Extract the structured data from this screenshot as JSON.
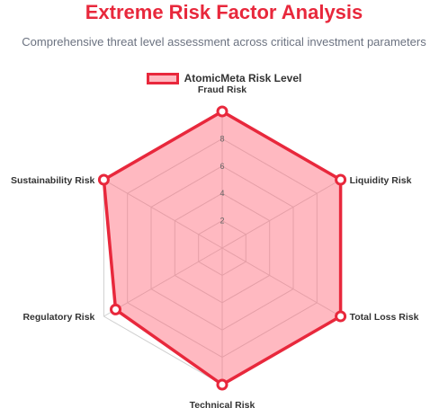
{
  "chart_data": {
    "type": "radar",
    "title": "Extreme Risk Factor Analysis",
    "subtitle": "Comprehensive threat level assessment across critical investment parameters",
    "categories": [
      "Fraud Risk",
      "Liquidity Risk",
      "Total Loss Risk",
      "Technical Risk",
      "Regulatory Risk",
      "Sustainability Risk"
    ],
    "series": [
      {
        "name": "AtomicMeta Risk Level",
        "values": [
          10,
          10,
          10,
          10,
          9,
          10
        ]
      }
    ],
    "rlim": [
      0,
      10
    ],
    "ticks": [
      2,
      4,
      6,
      8
    ],
    "legend": "top",
    "grid": true
  },
  "colors": {
    "title": "#e8283c",
    "series_line": "#e8283c",
    "series_fill": "rgba(255,99,118,0.45)",
    "grid": "#cfcfcf"
  }
}
